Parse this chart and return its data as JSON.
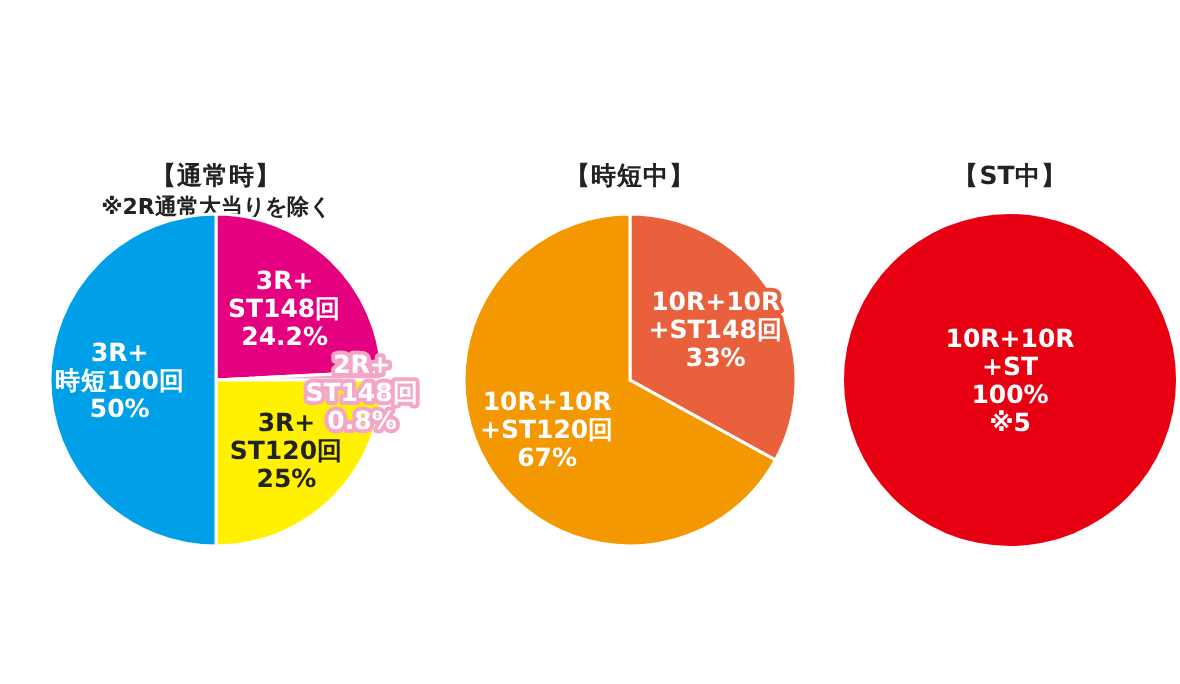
{
  "chart_data": [
    {
      "type": "pie",
      "title": "【通常時】",
      "subtitle": "※2R通常大当りを除く",
      "categories": [
        "3R+\nST148回",
        "2R+\nST148回",
        "3R+\nST120回",
        "3R+\n時短100回"
      ],
      "values": [
        24.2,
        0.8,
        25,
        50
      ],
      "colors": [
        "#e4007f",
        "#f4a6c8",
        "#fff100",
        "#00a0e9"
      ],
      "value_labels": [
        "24.2%",
        "0.8%",
        "25%",
        "50%"
      ]
    },
    {
      "type": "pie",
      "title": "【時短中】",
      "categories": [
        "10R+10R\n+ST148回",
        "10R+10R\n+ST120回"
      ],
      "values": [
        33,
        67
      ],
      "colors": [
        "#e8603c",
        "#f39800"
      ],
      "value_labels": [
        "33%",
        "67%"
      ]
    },
    {
      "type": "pie",
      "title": "【ST中】",
      "categories": [
        "10R+10R\n+ST"
      ],
      "values": [
        100
      ],
      "colors": [
        "#e60012"
      ],
      "value_labels": [
        "100%\n※5"
      ]
    }
  ]
}
